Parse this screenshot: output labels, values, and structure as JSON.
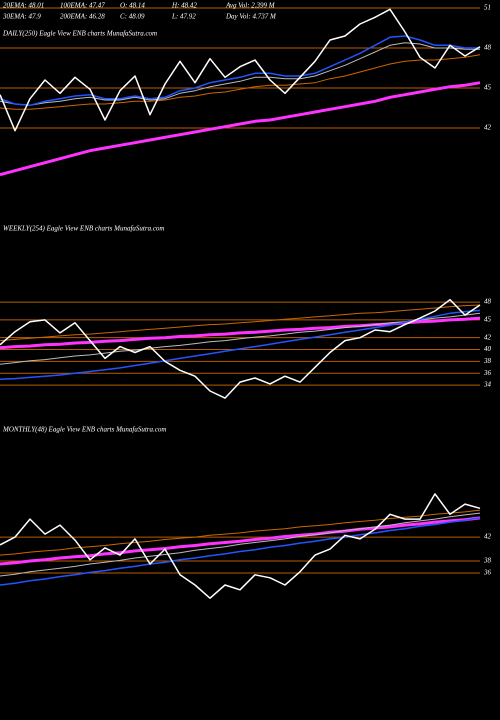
{
  "header": [
    "20EMA: 48.01",
    "100EMA: 47.47",
    "O: 48.14",
    "H: 48.42",
    "Avg Vol: 2.399 M",
    "30EMA: 47.9",
    "200EMA: 46.28",
    "C: 48.09",
    "L: 47.92",
    "Day Vol: 4.737 M"
  ],
  "chart_data": [
    {
      "type": "line",
      "title": "DAILY(250) Eagle View ENB charts MunafaSutra.com",
      "ylim": [
        36.6,
        51.6
      ],
      "yticks": [
        51,
        48,
        45,
        42
      ],
      "grid": true,
      "grid_color": "#b85c00",
      "series": [
        {
          "color": "#ff33ff",
          "width": 3,
          "values": [
            38.5,
            38.8,
            39.1,
            39.4,
            39.7,
            40.0,
            40.3,
            40.5,
            40.7,
            40.9,
            41.1,
            41.3,
            41.5,
            41.7,
            41.9,
            42.1,
            42.3,
            42.5,
            42.6,
            42.8,
            43.0,
            43.2,
            43.4,
            43.6,
            43.8,
            44.0,
            44.3,
            44.5,
            44.7,
            44.9,
            45.1,
            45.2,
            45.4
          ]
        },
        {
          "color": "#cc6600",
          "width": 1,
          "values": [
            43.5,
            43.4,
            43.4,
            43.5,
            43.6,
            43.7,
            43.8,
            43.8,
            43.9,
            44.0,
            44.0,
            44.1,
            44.3,
            44.4,
            44.6,
            44.7,
            44.9,
            45.1,
            45.2,
            45.2,
            45.3,
            45.4,
            45.7,
            45.9,
            46.2,
            46.5,
            46.8,
            47.0,
            47.1,
            47.1,
            47.2,
            47.3,
            47.5
          ]
        },
        {
          "color": "#bbbbbb",
          "width": 1,
          "values": [
            44.0,
            43.8,
            43.7,
            43.9,
            44.0,
            44.2,
            44.3,
            44.1,
            44.1,
            44.3,
            44.1,
            44.2,
            44.6,
            44.8,
            45.1,
            45.3,
            45.5,
            45.8,
            45.8,
            45.7,
            45.7,
            45.9,
            46.3,
            46.7,
            47.2,
            47.7,
            48.2,
            48.4,
            48.3,
            48.0,
            48.0,
            47.9,
            47.9
          ]
        },
        {
          "color": "#2255ff",
          "width": 1.5,
          "values": [
            44.2,
            43.8,
            43.7,
            44.0,
            44.2,
            44.4,
            44.5,
            44.2,
            44.2,
            44.4,
            44.2,
            44.3,
            44.8,
            45.0,
            45.4,
            45.6,
            45.8,
            46.1,
            46.1,
            45.9,
            45.9,
            46.1,
            46.6,
            47.1,
            47.6,
            48.2,
            48.8,
            48.9,
            48.6,
            48.2,
            48.2,
            48.0,
            48.0
          ]
        },
        {
          "color": "#ffffff",
          "width": 1.5,
          "values": [
            44.5,
            41.8,
            44.2,
            45.6,
            44.6,
            45.8,
            44.9,
            42.6,
            44.8,
            45.9,
            43.0,
            45.3,
            47.0,
            45.4,
            47.2,
            45.8,
            46.6,
            47.1,
            45.6,
            44.6,
            45.8,
            47.0,
            48.6,
            48.9,
            49.8,
            50.3,
            50.9,
            49.2,
            47.3,
            46.5,
            48.2,
            47.4,
            48.1
          ]
        }
      ]
    },
    {
      "type": "line",
      "title": "WEEKLY(254) Eagle View ENB charts MunafaSutra.com",
      "ylim": [
        29.8,
        61
      ],
      "yticks": [
        48,
        45,
        42,
        40,
        38,
        36,
        34
      ],
      "grid": true,
      "grid_color": "#b85c00",
      "series": [
        {
          "color": "#ff33ff",
          "width": 3,
          "values": [
            40.3,
            40.5,
            40.6,
            40.8,
            40.9,
            41.1,
            41.2,
            41.4,
            41.5,
            41.7,
            41.9,
            42.0,
            42.2,
            42.3,
            42.5,
            42.6,
            42.8,
            42.9,
            43.1,
            43.3,
            43.4,
            43.6,
            43.7,
            43.9,
            44.0,
            44.2,
            44.3,
            44.5,
            44.7,
            44.8,
            45.0,
            45.1,
            45.3
          ]
        },
        {
          "color": "#cc6600",
          "width": 1,
          "values": [
            41.5,
            41.7,
            41.9,
            42.1,
            42.3,
            42.5,
            42.6,
            42.8,
            43.0,
            43.2,
            43.4,
            43.6,
            43.8,
            44.0,
            44.2,
            44.3,
            44.5,
            44.7,
            44.9,
            45.1,
            45.3,
            45.5,
            45.7,
            45.9,
            46.1,
            46.2,
            46.4,
            46.6,
            46.8,
            47.0,
            47.2,
            47.4,
            47.5
          ]
        },
        {
          "color": "#bbbbbb",
          "width": 1,
          "values": [
            37.5,
            37.8,
            38.1,
            38.3,
            38.6,
            38.9,
            39.1,
            39.4,
            39.7,
            39.9,
            40.2,
            40.5,
            40.7,
            41.0,
            41.3,
            41.5,
            41.8,
            42.1,
            42.3,
            42.6,
            42.9,
            43.1,
            43.4,
            43.7,
            43.9,
            44.2,
            44.5,
            44.7,
            45.0,
            45.3,
            45.5,
            45.8,
            46.1
          ]
        },
        {
          "color": "#2255ff",
          "width": 1.5,
          "values": [
            35.0,
            35.1,
            35.3,
            35.5,
            35.7,
            36.0,
            36.3,
            36.6,
            36.9,
            37.3,
            37.7,
            38.1,
            38.5,
            38.9,
            39.3,
            39.7,
            40.1,
            40.5,
            40.9,
            41.3,
            41.7,
            42.1,
            42.5,
            42.9,
            43.3,
            43.7,
            44.1,
            44.6,
            45.1,
            45.6,
            46.1,
            46.4,
            46.6
          ]
        },
        {
          "color": "#ffffff",
          "width": 1.5,
          "values": [
            40.8,
            43.0,
            44.7,
            45.0,
            42.8,
            44.5,
            41.5,
            38.5,
            40.5,
            39.5,
            40.5,
            38.0,
            36.5,
            35.5,
            33.0,
            31.8,
            34.5,
            35.2,
            34.2,
            35.5,
            34.5,
            37.0,
            39.5,
            41.5,
            42.0,
            43.3,
            43.0,
            44.2,
            45.3,
            46.5,
            48.4,
            45.8,
            47.5
          ]
        }
      ]
    },
    {
      "type": "line",
      "title": "MONTHLY(48) Eagle View ENB charts MunafaSutra.com",
      "ylim": [
        31.5,
        60.7
      ],
      "yticks": [
        42,
        38,
        36
      ],
      "grid": true,
      "grid_color": "#b85c00",
      "series": [
        {
          "color": "#ff33ff",
          "width": 3,
          "values": [
            37.5,
            37.7,
            38.0,
            38.2,
            38.5,
            38.7,
            38.9,
            39.2,
            39.4,
            39.7,
            39.9,
            40.1,
            40.4,
            40.6,
            40.9,
            41.1,
            41.3,
            41.6,
            41.8,
            42.1,
            42.3,
            42.5,
            42.8,
            43.0,
            43.3,
            43.5,
            43.7,
            44.0,
            44.2,
            44.5,
            44.7,
            44.9,
            45.2
          ]
        },
        {
          "color": "#cc6600",
          "width": 1,
          "values": [
            39.0,
            39.2,
            39.5,
            39.7,
            39.9,
            40.2,
            40.4,
            40.6,
            40.9,
            41.1,
            41.3,
            41.6,
            41.8,
            42.0,
            42.3,
            42.5,
            42.7,
            43.0,
            43.2,
            43.4,
            43.7,
            43.9,
            44.1,
            44.4,
            44.6,
            44.8,
            45.1,
            45.3,
            45.5,
            45.8,
            46.0,
            46.2,
            46.5
          ]
        },
        {
          "color": "#bbbbbb",
          "width": 1,
          "values": [
            35.5,
            35.8,
            36.2,
            36.5,
            36.8,
            37.1,
            37.5,
            37.8,
            38.1,
            38.5,
            38.8,
            39.1,
            39.4,
            39.8,
            40.1,
            40.4,
            40.8,
            41.1,
            41.4,
            41.7,
            42.1,
            42.4,
            42.7,
            43.1,
            43.4,
            43.7,
            44.0,
            44.4,
            44.7,
            45.0,
            45.4,
            45.7,
            46.0
          ]
        },
        {
          "color": "#2255ff",
          "width": 1.5,
          "values": [
            34.0,
            34.3,
            34.7,
            35.0,
            35.4,
            35.7,
            36.1,
            36.4,
            36.8,
            37.1,
            37.5,
            37.8,
            38.2,
            38.5,
            38.9,
            39.2,
            39.6,
            39.9,
            40.3,
            40.6,
            41.0,
            41.3,
            41.7,
            42.0,
            42.4,
            42.7,
            43.1,
            43.4,
            43.8,
            44.1,
            44.5,
            44.8,
            45.2
          ]
        },
        {
          "color": "#ffffff",
          "width": 1.5,
          "values": [
            40.7,
            42.0,
            45.0,
            42.5,
            44.0,
            41.5,
            38.2,
            40.2,
            39.0,
            41.7,
            37.5,
            40.0,
            35.7,
            34.0,
            31.8,
            34.0,
            33.2,
            35.7,
            35.2,
            34.0,
            36.2,
            39.0,
            40.0,
            42.3,
            41.7,
            43.3,
            45.8,
            45.0,
            45.0,
            49.2,
            45.8,
            47.5,
            46.8
          ]
        }
      ]
    }
  ]
}
